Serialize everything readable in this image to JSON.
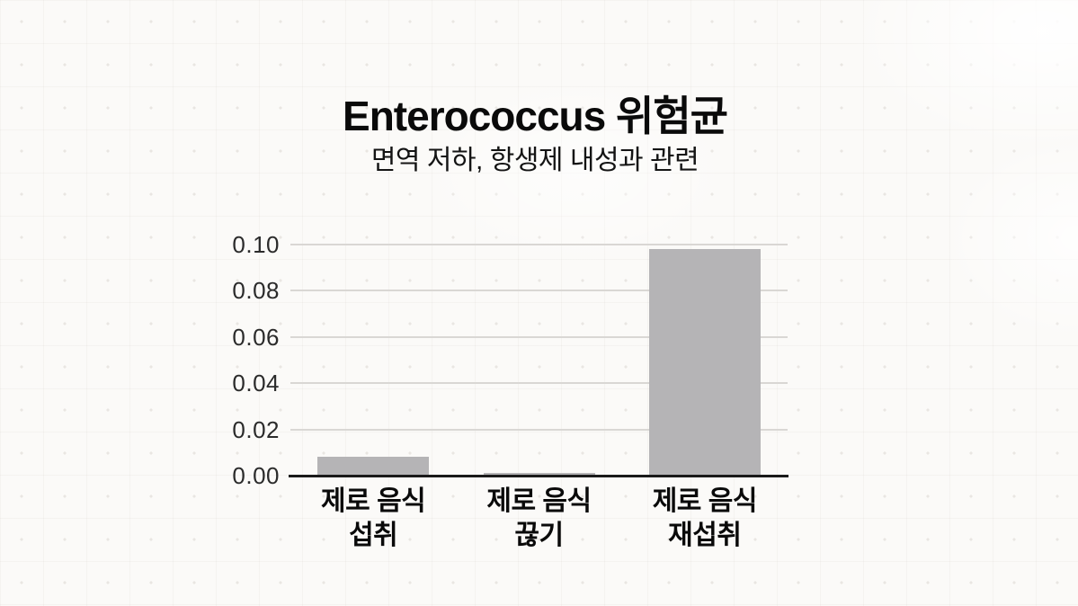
{
  "chart_data": {
    "type": "bar",
    "title": "Enterococcus 위험균",
    "subtitle": "면역 저하, 항생제 내성과 관련",
    "categories": [
      "제로 음식 섭취",
      "제로 음식 끊기",
      "제로 음식 재섭취"
    ],
    "category_lines": [
      [
        "제로 음식",
        "섭취"
      ],
      [
        "제로 음식",
        "끊기"
      ],
      [
        "제로 음식",
        "재섭취"
      ]
    ],
    "values": [
      0.008,
      0.001,
      0.098
    ],
    "xlabel": "",
    "ylabel": "",
    "ylim": [
      0,
      0.1
    ],
    "yticks": [
      0,
      0.02,
      0.04,
      0.06,
      0.08,
      0.1
    ],
    "ytick_labels": [
      "0.00",
      "0.02",
      "0.04",
      "0.06",
      "0.08",
      "0.10"
    ],
    "grid": "horizontal",
    "legend": "none",
    "bar_color": "#b5b4b6",
    "gridline_color": "#d9d7d4",
    "axis_color": "#1a1a1a",
    "background_color": "#fbfaf8"
  }
}
